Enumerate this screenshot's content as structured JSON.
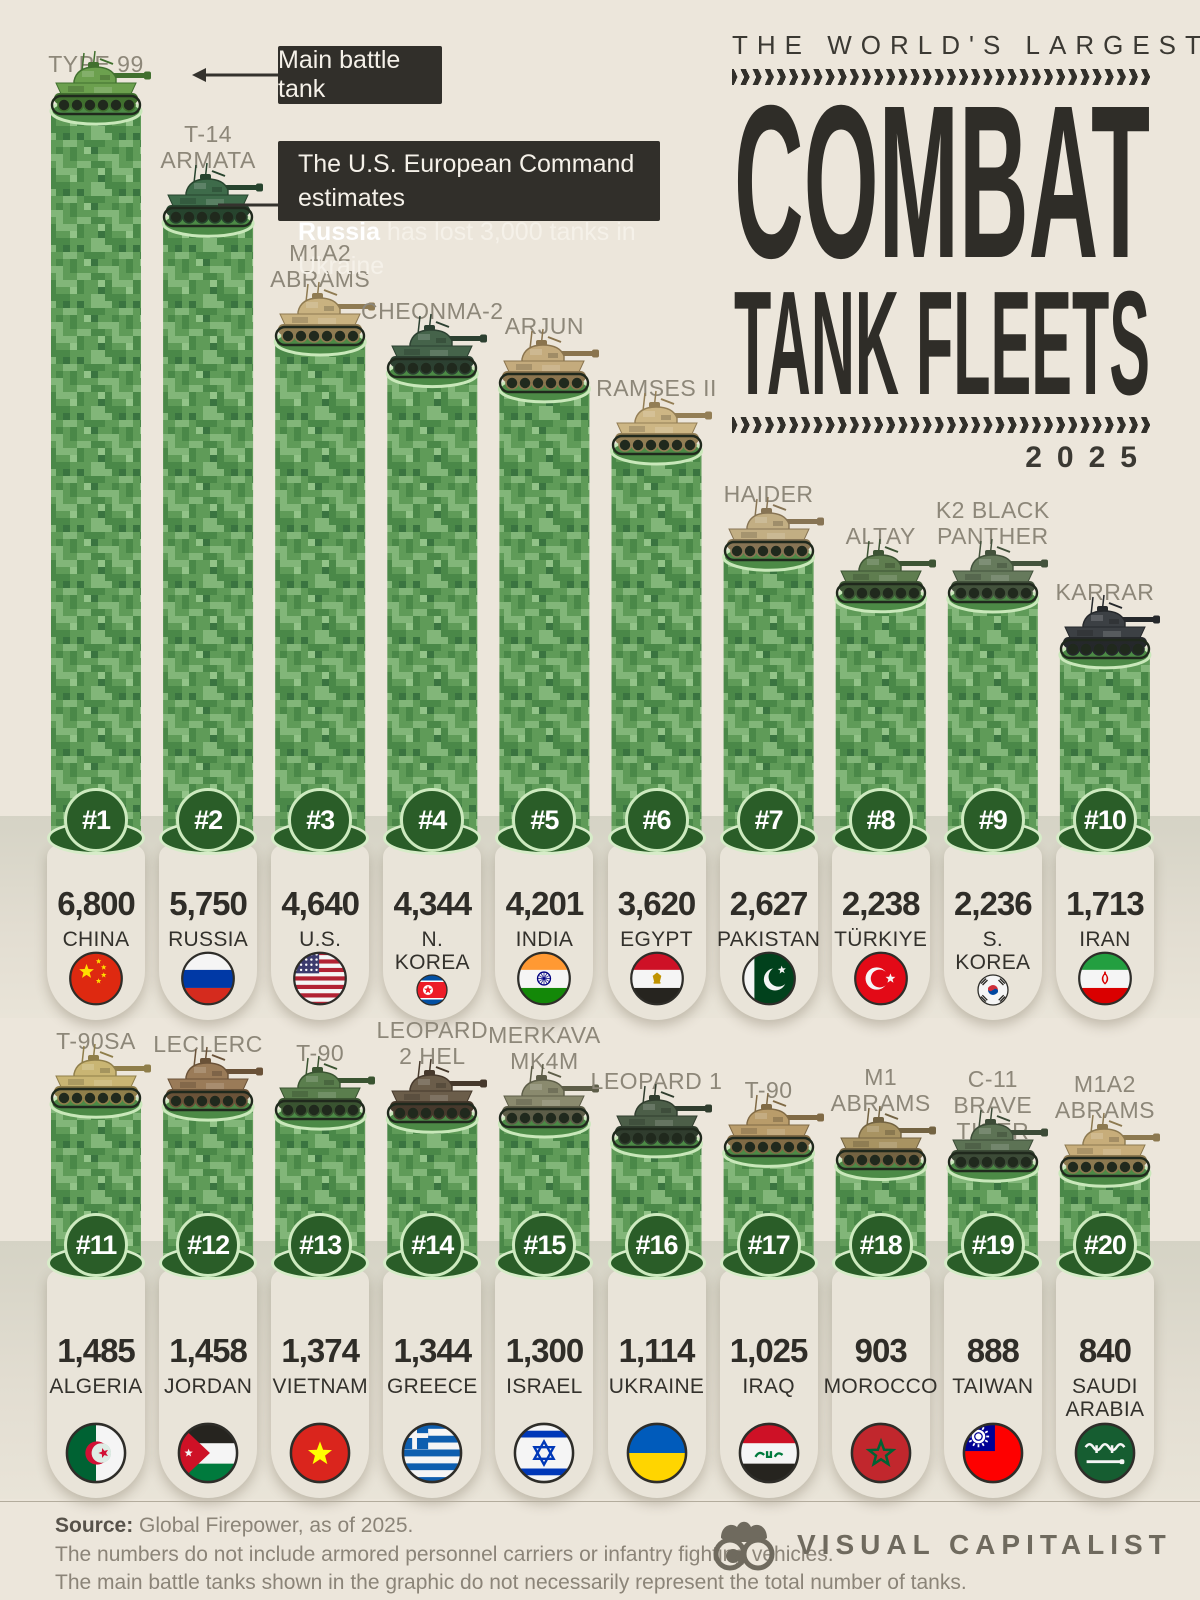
{
  "title": {
    "kicker": "THE WORLD'S LARGEST",
    "line1": "COMBAT",
    "line2": "TANK FLEETS",
    "year": "2025"
  },
  "annotations": {
    "mbt_label": "Main battle tank",
    "russia_note_line1": "The U.S. European Command estimates",
    "russia_note_bold": "Russia",
    "russia_note_rest": " has lost 3,000 tanks in Ukraine"
  },
  "footer": {
    "source_label": "Source:",
    "source_rest": " Global Firepower, as of 2025.",
    "note1": "The numbers do not include armored personnel carriers or infantry fighting vehicles.",
    "note2": "The main battle tanks shown in the graphic do not necessarily represent the total number of tanks.",
    "brand": "VISUAL CAPITALIST"
  },
  "colors": {
    "background": "#ece6db",
    "band": "#d5d3c5",
    "bar_base": "#5f9b58",
    "bar_light": "#82b679",
    "bar_dark": "#4a8848",
    "ellipse_dark": "#2a5d28",
    "badge_ring": "#cdeabf",
    "card": "#e9e4d9",
    "ink": "#2f2d28",
    "label_gray": "#8d8779",
    "note_box": "#312f2a"
  },
  "chart_data": {
    "type": "bar",
    "title": "The World's Largest Combat Tank Fleets 2025",
    "unit": "tanks",
    "source": "Global Firepower, as of 2025",
    "ylim": [
      0,
      6800
    ],
    "ranks": [
      {
        "rank": "#1",
        "value": 6800,
        "value_label": "6,800",
        "country": "CHINA",
        "tank": "TYPE 99",
        "flag": "china",
        "body": "#6ca04e",
        "dark": "#41702f"
      },
      {
        "rank": "#2",
        "value": 5750,
        "value_label": "5,750",
        "country": "RUSSIA",
        "tank": "T-14\nARMATA",
        "flag": "russia",
        "body": "#3e6b4a",
        "dark": "#27442e"
      },
      {
        "rank": "#3",
        "value": 4640,
        "value_label": "4,640",
        "country": "U.S.",
        "tank": "M1A2\nABRAMS",
        "flag": "us",
        "body": "#c9b280",
        "dark": "#8f7b52"
      },
      {
        "rank": "#4",
        "value": 4344,
        "value_label": "4,344",
        "country": "N. KOREA",
        "tank": "CHEONMA-2",
        "flag": "nkorea",
        "body": "#45634a",
        "dark": "#2c4031"
      },
      {
        "rank": "#5",
        "value": 4201,
        "value_label": "4,201",
        "country": "INDIA",
        "tank": "ARJUN",
        "flag": "india",
        "body": "#c4ab7d",
        "dark": "#8a744e"
      },
      {
        "rank": "#6",
        "value": 3620,
        "value_label": "3,620",
        "country": "EGYPT",
        "tank": "RAMSES II",
        "flag": "egypt",
        "body": "#cdb684",
        "dark": "#937e55"
      },
      {
        "rank": "#7",
        "value": 2627,
        "value_label": "2,627",
        "country": "PAKISTAN",
        "tank": "HAIDER",
        "flag": "pakistan",
        "body": "#c2ae83",
        "dark": "#877454"
      },
      {
        "rank": "#8",
        "value": 2238,
        "value_label": "2,238",
        "country": "TÜRKIYE",
        "tank": "ALTAY",
        "flag": "turkiye",
        "body": "#5f7d4f",
        "dark": "#3d5434"
      },
      {
        "rank": "#9",
        "value": 2236,
        "value_label": "2,236",
        "country": "S. KOREA",
        "tank": "K2 BLACK\nPANTHER",
        "flag": "skorea",
        "body": "#667a5c",
        "dark": "#43523c"
      },
      {
        "rank": "#10",
        "value": 1713,
        "value_label": "1,713",
        "country": "IRAN",
        "tank": "KARRAR",
        "flag": "iran",
        "body": "#3c4044",
        "dark": "#25282b"
      },
      {
        "rank": "#11",
        "value": 1485,
        "value_label": "1,485",
        "country": "ALGERIA",
        "tank": "T-90SA",
        "flag": "algeria",
        "body": "#c9b573",
        "dark": "#8f7e4a"
      },
      {
        "rank": "#12",
        "value": 1458,
        "value_label": "1,458",
        "country": "JORDAN",
        "tank": "LECLERC",
        "flag": "jordan",
        "body": "#9a7b58",
        "dark": "#6a5238"
      },
      {
        "rank": "#13",
        "value": 1374,
        "value_label": "1,374",
        "country": "VIETNAM",
        "tank": "T-90",
        "flag": "vietnam",
        "body": "#5a7e4d",
        "dark": "#3a5431"
      },
      {
        "rank": "#14",
        "value": 1344,
        "value_label": "1,344",
        "country": "GREECE",
        "tank": "LEOPARD\n2 HEL",
        "flag": "greece",
        "body": "#6b5d4a",
        "dark": "#46392c"
      },
      {
        "rank": "#15",
        "value": 1300,
        "value_label": "1,300",
        "country": "ISRAEL",
        "tank": "MERKAVA\nMK4M",
        "flag": "israel",
        "body": "#8a8a6e",
        "dark": "#5d5d48"
      },
      {
        "rank": "#16",
        "value": 1114,
        "value_label": "1,114",
        "country": "UKRAINE",
        "tank": "LEOPARD 1",
        "flag": "ukraine",
        "body": "#4c5e48",
        "dark": "#303d2e"
      },
      {
        "rank": "#17",
        "value": 1025,
        "value_label": "1,025",
        "country": "IRAQ",
        "tank": "T-90",
        "flag": "iraq",
        "body": "#b99c6a",
        "dark": "#806a45"
      },
      {
        "rank": "#18",
        "value": 903,
        "value_label": "903",
        "country": "MOROCCO",
        "tank": "M1\nABRAMS",
        "flag": "morocco",
        "body": "#a89362",
        "dark": "#736342"
      },
      {
        "rank": "#19",
        "value": 888,
        "value_label": "888",
        "country": "TAIWAN",
        "tank": "C-11\nBRAVE TIGER",
        "flag": "taiwan",
        "body": "#5d7355",
        "dark": "#3c4b37"
      },
      {
        "rank": "#20",
        "value": 840,
        "value_label": "840",
        "country": "SAUDI ARABIA",
        "tank": "M1A2\nABRAMS",
        "flag": "saudi",
        "body": "#c7ad7a",
        "dark": "#8c7950"
      }
    ]
  }
}
